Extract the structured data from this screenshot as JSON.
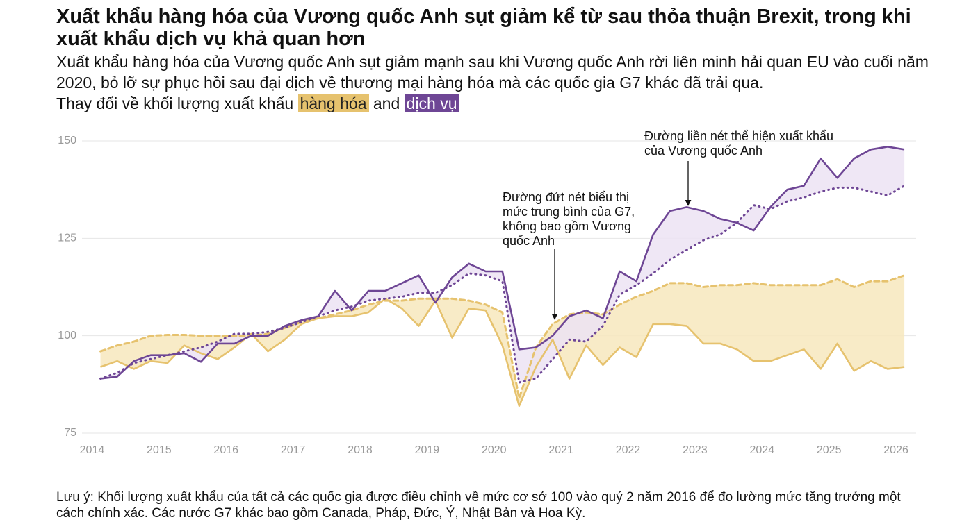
{
  "chart_data": {
    "type": "line",
    "title": "Xuất khẩu hàng hóa của Vương quốc Anh sụt giảm kể từ sau thỏa thuận Brexit, trong khi xuất khẩu dịch vụ khả quan hơn",
    "subtitle": "Xuất khẩu hàng hóa của Vương quốc Anh sụt giảm mạnh sau khi Vương quốc Anh rời liên minh hải quan EU vào cuối năm 2020, bỏ lỡ sự phục hồi sau đại dịch về thương mại hàng hóa mà các quốc gia G7 khác đã trải qua.",
    "legend_prefix": "Thay đổi về khối lượng xuất khẩu",
    "legend_joiner": "and",
    "note": "Lưu ý: Khối lượng xuất khẩu của tất cả các quốc gia được điều chỉnh về mức cơ sở 100 vào quý 2 năm 2016 để đo lường mức tăng trưởng một cách chính xác. Các nước G7 khác bao gồm Canada, Pháp, Đức, Ý, Nhật Bản và Hoa Kỳ.",
    "annotations": [
      {
        "lines": [
          "Đường đứt nét biểu thị",
          "mức trung bình của G7,",
          "không bao gồm Vương",
          "quốc Anh"
        ]
      },
      {
        "lines": [
          "Đường liền nét thể hiện xuất khẩu",
          "của Vương quốc Anh"
        ]
      }
    ],
    "x": [
      2014.125,
      2014.375,
      2014.625,
      2014.875,
      2015.125,
      2015.375,
      2015.625,
      2015.875,
      2016.125,
      2016.375,
      2016.625,
      2016.875,
      2017.125,
      2017.375,
      2017.625,
      2017.875,
      2018.125,
      2018.375,
      2018.625,
      2018.875,
      2019.125,
      2019.375,
      2019.625,
      2019.875,
      2020.125,
      2020.375,
      2020.625,
      2020.875,
      2021.125,
      2021.375,
      2021.625,
      2021.875,
      2022.125,
      2022.375,
      2022.625,
      2022.875,
      2023.125,
      2023.375,
      2023.625,
      2023.875,
      2024.125,
      2024.375,
      2024.625,
      2024.875,
      2025.125,
      2025.375,
      2025.625,
      2025.875,
      2026.125
    ],
    "series": [
      {
        "name": "hàng hóa",
        "color": "#e6c26e",
        "fill": "#f7e8bd",
        "label_color": "#222222",
        "average_style": "dashed",
        "values": [
          92,
          93.5,
          91.5,
          93.5,
          93,
          97.5,
          95.5,
          94,
          97,
          100.5,
          96,
          99,
          103,
          104.5,
          105,
          105,
          106,
          109.5,
          107,
          102.5,
          109,
          99.5,
          107,
          106.5,
          97.5,
          82,
          92,
          99,
          89,
          97.5,
          92.5,
          97,
          94.5,
          103,
          103,
          102.5,
          98,
          98,
          96.5,
          93.5,
          93.5,
          95,
          96.5,
          91.5,
          98,
          91,
          93.5,
          91.5,
          92
        ],
        "average": [
          96,
          97.5,
          98.5,
          100,
          100.2,
          100.2,
          100,
          100,
          100,
          100,
          100.5,
          102,
          103.5,
          104.5,
          105.5,
          106.5,
          108,
          109,
          109,
          109.5,
          109.5,
          109.5,
          109,
          108,
          106,
          84,
          97,
          103,
          105.5,
          106,
          105.5,
          108,
          110,
          111.5,
          113.5,
          113.5,
          112.5,
          113,
          113,
          113.5,
          113,
          113,
          113,
          113,
          114.5,
          112.5,
          114,
          114,
          115.5
        ]
      },
      {
        "name": "dịch vụ",
        "color": "#6e4695",
        "fill": "#ece3f3",
        "label_color": "#ffffff",
        "average_style": "dotted",
        "values": [
          89,
          89.5,
          93.5,
          95,
          95,
          95.5,
          93.3,
          98,
          98,
          100,
          100,
          102.5,
          104,
          105,
          111.5,
          106.5,
          111.5,
          111.5,
          113.5,
          115.5,
          108.5,
          115,
          118.5,
          116.5,
          116.5,
          96.5,
          97,
          100,
          105,
          106.5,
          104.5,
          116.5,
          114,
          126,
          132,
          133,
          132,
          130,
          129,
          127,
          133,
          137.5,
          138.5,
          145.5,
          140.5,
          145.5,
          147.8,
          148.5,
          147.8
        ],
        "average": [
          89,
          90.5,
          93,
          94,
          95,
          96,
          97,
          98.5,
          100.5,
          100.5,
          101,
          102,
          103.5,
          105,
          106.5,
          107.5,
          109,
          109.5,
          110,
          111,
          111,
          113,
          116,
          115.5,
          114,
          88,
          89,
          94,
          99,
          98.5,
          102.5,
          110.5,
          113,
          116,
          119.5,
          122,
          124.5,
          126,
          129,
          133.5,
          132.5,
          134.5,
          135.5,
          137,
          138,
          138,
          137,
          136,
          138.5
        ]
      }
    ],
    "xlim": [
      2013.85,
      2026.3
    ],
    "xticks": [
      2014,
      2015,
      2016,
      2017,
      2018,
      2019,
      2020,
      2021,
      2022,
      2023,
      2024,
      2025,
      2026
    ],
    "ylim": [
      75,
      150
    ],
    "yticks": [
      75,
      100,
      125,
      150
    ],
    "grid": true
  }
}
